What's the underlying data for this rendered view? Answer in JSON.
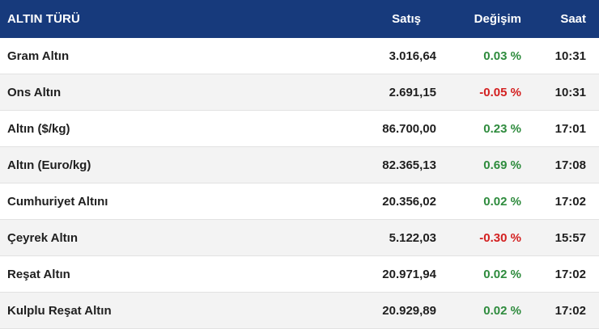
{
  "header": {
    "type_label": "ALTIN TÜRÜ",
    "sale_label": "Satış",
    "change_label": "Değişim",
    "time_label": "Saat"
  },
  "colors": {
    "header_bg": "#173a7c",
    "positive": "#2e8b3d",
    "negative": "#d32020"
  },
  "rows": [
    {
      "name": "Gram Altın",
      "sale": "3.016,64",
      "change": "0.03 %",
      "direction": "up",
      "time": "10:31"
    },
    {
      "name": "Ons Altın",
      "sale": "2.691,15",
      "change": "-0.05 %",
      "direction": "down",
      "time": "10:31"
    },
    {
      "name": "Altın ($/kg)",
      "sale": "86.700,00",
      "change": "0.23 %",
      "direction": "up",
      "time": "17:01"
    },
    {
      "name": "Altın (Euro/kg)",
      "sale": "82.365,13",
      "change": "0.69 %",
      "direction": "up",
      "time": "17:08"
    },
    {
      "name": "Cumhuriyet Altını",
      "sale": "20.356,02",
      "change": "0.02 %",
      "direction": "up",
      "time": "17:02"
    },
    {
      "name": "Çeyrek Altın",
      "sale": "5.122,03",
      "change": "-0.30 %",
      "direction": "down",
      "time": "15:57"
    },
    {
      "name": "Reşat Altın",
      "sale": "20.971,94",
      "change": "0.02 %",
      "direction": "up",
      "time": "17:02"
    },
    {
      "name": "Kulplu Reşat Altın",
      "sale": "20.929,89",
      "change": "0.02 %",
      "direction": "up",
      "time": "17:02"
    }
  ]
}
